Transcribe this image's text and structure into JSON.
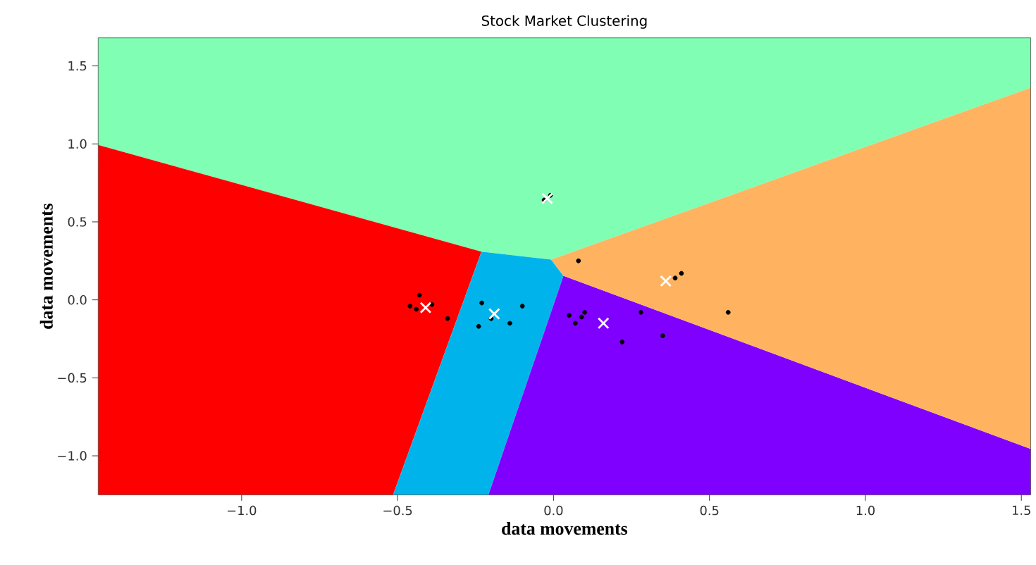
{
  "chart_data": {
    "type": "scatter",
    "title": "Stock Market Clustering",
    "xlabel": "data movements",
    "ylabel": "data movements",
    "xlim": [
      -1.46,
      1.53
    ],
    "ylim": [
      -1.25,
      1.68
    ],
    "xticks": [
      {
        "value": -1.0,
        "label": "−1.0"
      },
      {
        "value": -0.5,
        "label": "−0.5"
      },
      {
        "value": 0.0,
        "label": "0.0"
      },
      {
        "value": 0.5,
        "label": "0.5"
      },
      {
        "value": 1.0,
        "label": "1.0"
      },
      {
        "value": 1.5,
        "label": "1.5"
      }
    ],
    "yticks": [
      {
        "value": -1.0,
        "label": "−1.0"
      },
      {
        "value": -0.5,
        "label": "−0.5"
      },
      {
        "value": 0.0,
        "label": "0.0"
      },
      {
        "value": 0.5,
        "label": "0.5"
      },
      {
        "value": 1.0,
        "label": "1.0"
      },
      {
        "value": 1.5,
        "label": "1.5"
      }
    ],
    "grid": false,
    "series": [
      {
        "color": "#000000",
        "marker": "circle",
        "x": [
          -0.03,
          -0.01,
          -0.43,
          -0.46,
          -0.44,
          -0.39,
          -0.34,
          -0.23,
          -0.24,
          -0.2,
          -0.14,
          -0.1,
          0.05,
          0.07,
          0.09,
          0.1,
          0.22,
          0.28,
          0.35,
          0.08,
          0.39,
          0.41,
          0.56
        ],
        "values": [
          0.64,
          0.67,
          0.03,
          -0.04,
          -0.06,
          -0.03,
          -0.12,
          -0.02,
          -0.17,
          -0.12,
          -0.15,
          -0.04,
          -0.1,
          -0.15,
          -0.11,
          -0.08,
          -0.27,
          -0.08,
          -0.23,
          0.25,
          0.14,
          0.17,
          -0.08
        ]
      },
      {
        "color": "#ffffff",
        "marker": "cross",
        "x": [
          -0.02,
          -0.41,
          -0.19,
          0.16,
          0.36
        ],
        "values": [
          0.65,
          -0.05,
          -0.09,
          -0.15,
          0.12
        ]
      }
    ]
  }
}
